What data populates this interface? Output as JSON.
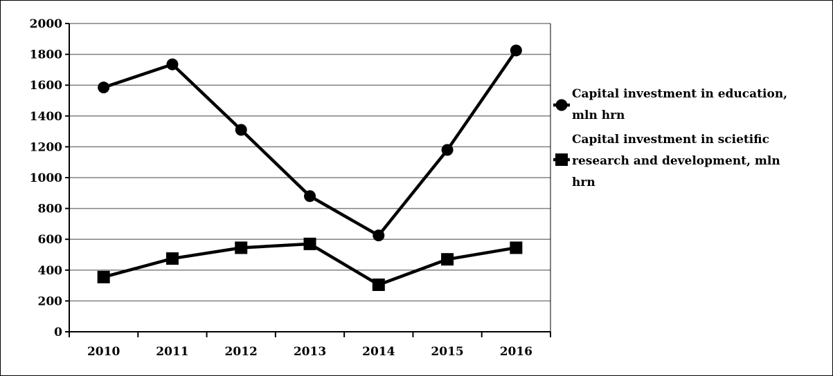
{
  "chart_data": {
    "type": "line",
    "title": "",
    "xlabel": "",
    "ylabel": "",
    "categories": [
      "2010",
      "2011",
      "2012",
      "2013",
      "2014",
      "2015",
      "2016"
    ],
    "ylim": [
      0,
      2000
    ],
    "yticks": [
      0,
      200,
      400,
      600,
      800,
      1000,
      1200,
      1400,
      1600,
      1800,
      2000
    ],
    "grid": true,
    "legend_position": "right",
    "series": [
      {
        "name": "Capital investment in education, mln hrn",
        "name_lines": [
          "Capital investment in education,",
          "mln hrn"
        ],
        "marker": "circle",
        "color": "#000000",
        "values": [
          1585,
          1735,
          1310,
          880,
          625,
          1180,
          1825
        ]
      },
      {
        "name": "Capital investment in scietific research and development, mln hrn",
        "name_lines": [
          "Capital investment in scietific",
          "research and development, mln",
          "hrn"
        ],
        "marker": "square",
        "color": "#000000",
        "values": [
          355,
          475,
          545,
          570,
          305,
          470,
          545
        ]
      }
    ]
  }
}
